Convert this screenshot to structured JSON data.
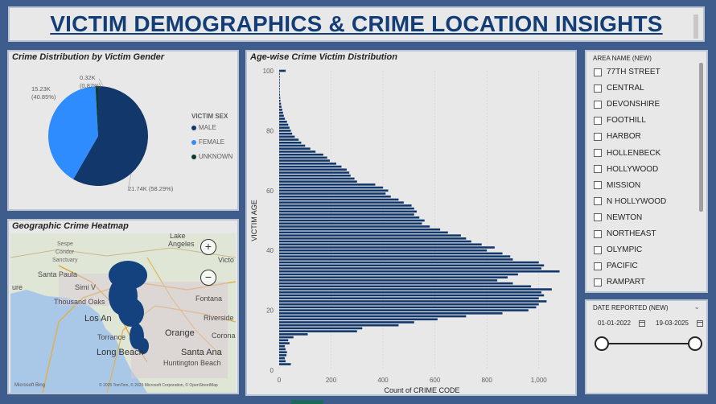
{
  "header": {
    "title": "VICTIM DEMOGRAPHICS & CRIME LOCATION INSIGHTS"
  },
  "gender_panel": {
    "title": "Crime Distribution by Victim Gender",
    "legend_title": "VICTIM SEX",
    "labels": {
      "male": "21.74K (58.29%)",
      "female_value": "15.23K",
      "female_pct": "(40.85%)",
      "unknown_value": "0.32K",
      "unknown_pct": "(0.87%)"
    }
  },
  "map_panel": {
    "title": "Geographic Crime Heatmap",
    "places": [
      "Lake",
      "Angeles",
      "Sespe",
      "Condor",
      "Sanctuary",
      "Santa Paula",
      "Simi V",
      "Thousand Oaks",
      "Los An",
      "Torrance",
      "Long Beach",
      "Orange",
      "Santa Ana",
      "Huntington Beach",
      "Fontana",
      "Victo",
      "Corona",
      "Riverside",
      "ure"
    ],
    "attribution": "© 2025 TomTom, © 2025 Microsoft Corporation, © OpenStreetMap",
    "provider": "Microsoft Bing"
  },
  "age_panel": {
    "title": "Age-wise Crime Victim Distribution"
  },
  "area_slicer": {
    "header": "AREA NAME (NEW)",
    "items": [
      "77TH STREET",
      "CENTRAL",
      "DEVONSHIRE",
      "FOOTHILL",
      "HARBOR",
      "HOLLENBECK",
      "HOLLYWOOD",
      "MISSION",
      "N HOLLYWOOD",
      "NEWTON",
      "NORTHEAST",
      "OLYMPIC",
      "PACIFIC",
      "RAMPART"
    ]
  },
  "date_slicer": {
    "header": "DATE REPORTED (NEW)",
    "start": "01-01-2022",
    "end": "19-03-2025"
  },
  "colors": {
    "male": "#12386b",
    "female": "#2f8cff",
    "unknown": "#0f3b2a",
    "bar": "#12386b",
    "title": "#133d77"
  },
  "chart_data": [
    {
      "type": "pie",
      "title": "Crime Distribution by Victim Gender",
      "legend": {
        "title": "VICTIM SEX",
        "entries": [
          "MALE",
          "FEMALE",
          "UNKNOWN"
        ]
      },
      "slices": [
        {
          "label": "MALE",
          "value": 21.74,
          "percent": 58.29
        },
        {
          "label": "FEMALE",
          "value": 15.23,
          "percent": 40.85
        },
        {
          "label": "UNKNOWN",
          "value": 0.32,
          "percent": 0.87
        }
      ]
    },
    {
      "type": "bar",
      "orientation": "horizontal",
      "title": "Age-wise Crime Victim Distribution",
      "xlabel": "Count of CRIME CODE",
      "ylabel": "VICTIM AGE",
      "xlim": [
        0,
        1100
      ],
      "ylim": [
        0,
        100
      ],
      "xticks": [
        "0",
        "200",
        "400",
        "600",
        "800",
        "1,000"
      ],
      "yticks": [
        "0",
        "20",
        "40",
        "60",
        "80",
        "100"
      ],
      "ages": [
        2,
        3,
        4,
        5,
        6,
        7,
        8,
        9,
        10,
        11,
        12,
        13,
        14,
        15,
        16,
        17,
        18,
        19,
        20,
        21,
        22,
        23,
        24,
        25,
        26,
        27,
        28,
        29,
        30,
        31,
        32,
        33,
        34,
        35,
        36,
        37,
        38,
        39,
        40,
        41,
        42,
        43,
        44,
        45,
        46,
        47,
        48,
        49,
        50,
        51,
        52,
        53,
        54,
        55,
        56,
        57,
        58,
        59,
        60,
        61,
        62,
        63,
        64,
        65,
        66,
        67,
        68,
        69,
        70,
        71,
        72,
        73,
        74,
        75,
        76,
        77,
        78,
        79,
        80,
        81,
        82,
        83,
        84,
        85,
        86,
        87,
        88,
        89,
        90,
        91,
        92,
        93,
        94,
        95,
        96,
        97,
        98,
        99
      ],
      "values": [
        45,
        25,
        22,
        28,
        30,
        25,
        22,
        40,
        35,
        55,
        110,
        300,
        320,
        460,
        520,
        610,
        720,
        860,
        960,
        990,
        1000,
        1030,
        1000,
        1020,
        1010,
        1050,
        970,
        900,
        840,
        880,
        920,
        1080,
        1010,
        1020,
        1000,
        900,
        890,
        860,
        800,
        830,
        780,
        740,
        720,
        700,
        650,
        620,
        580,
        550,
        560,
        540,
        520,
        530,
        520,
        510,
        480,
        460,
        430,
        410,
        420,
        400,
        370,
        300,
        290,
        275,
        270,
        260,
        240,
        220,
        195,
        185,
        170,
        140,
        120,
        100,
        85,
        75,
        60,
        50,
        45,
        40,
        35,
        30,
        22,
        18,
        15,
        12,
        9,
        7,
        5,
        4,
        3,
        2,
        2,
        2,
        1,
        1,
        1,
        1
      ],
      "age_100": 25
    }
  ]
}
